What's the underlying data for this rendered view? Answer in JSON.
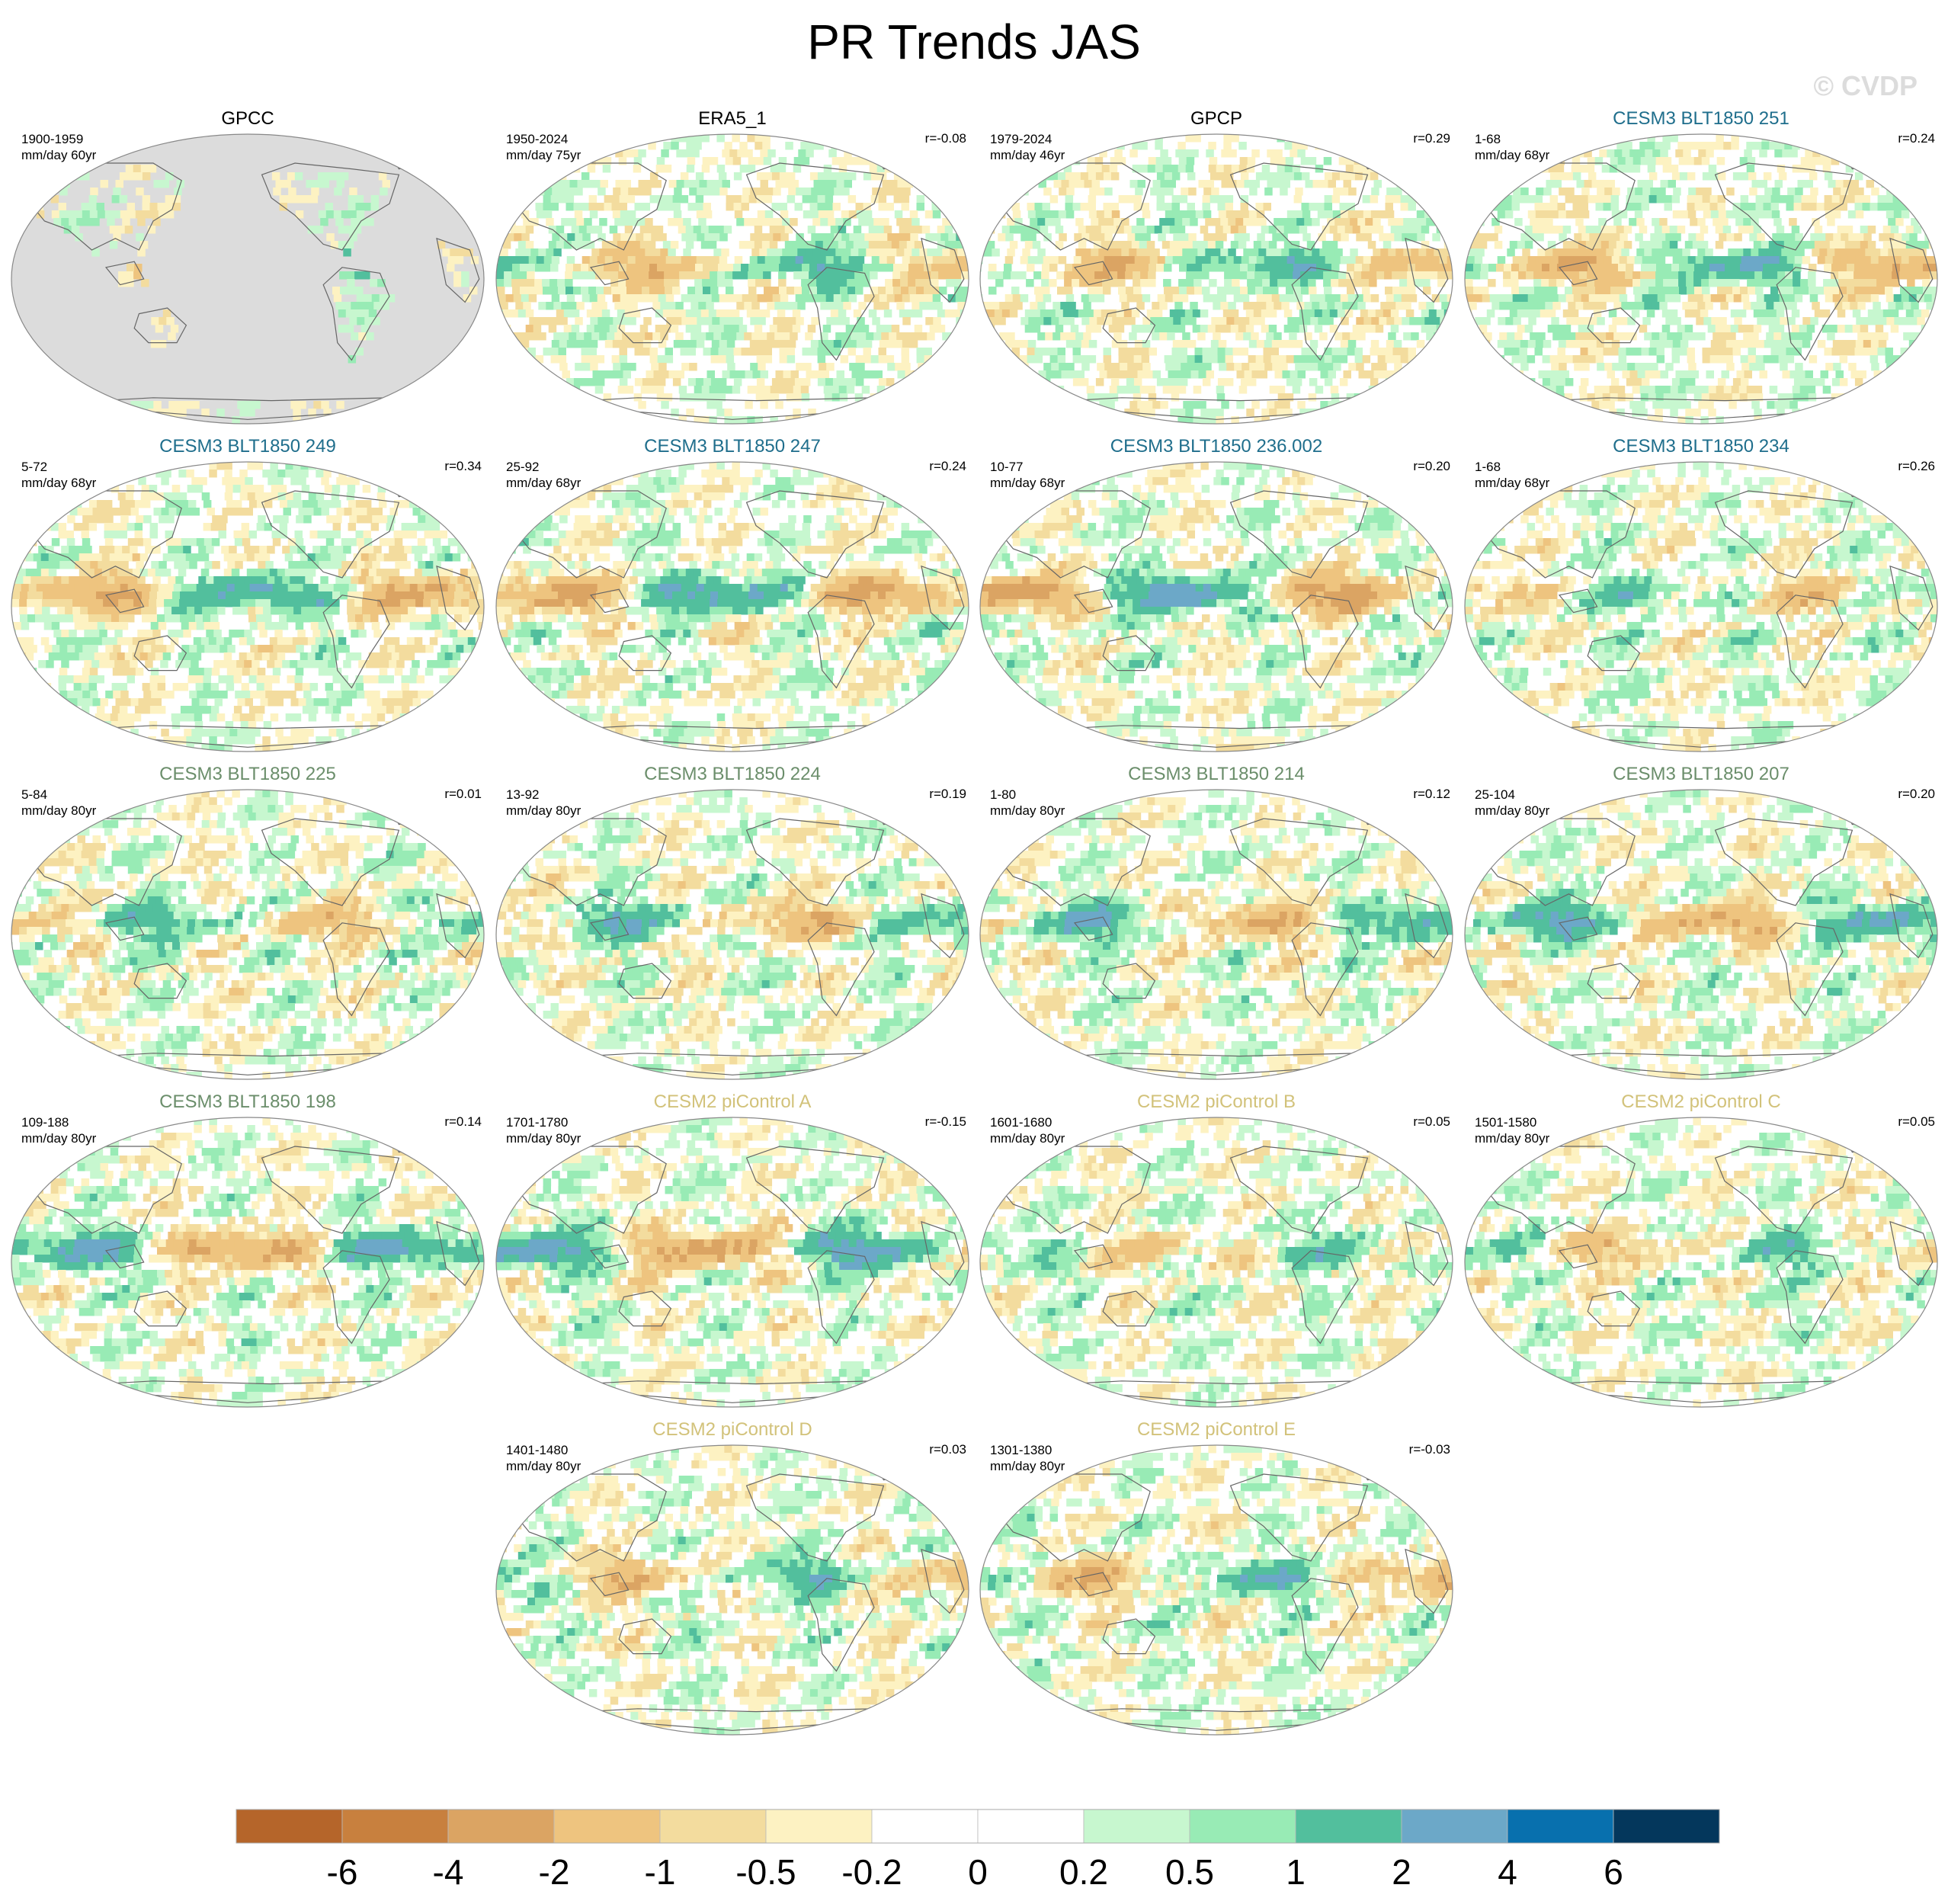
{
  "title": "PR Trends JAS",
  "watermark": "© CVDP",
  "chart_data": {
    "type": "heatmap",
    "projection": "robinson",
    "units_label": "mm/day",
    "colorbar": {
      "labels": [
        "-6",
        "-4",
        "-2",
        "-1",
        "-0.5",
        "-0.2",
        "0",
        "0.2",
        "0.5",
        "1",
        "2",
        "4",
        "6"
      ],
      "colors": [
        "#b5652a",
        "#c8803e",
        "#dba463",
        "#eec47f",
        "#f3dc9e",
        "#fdf2c2",
        "#ffffff",
        "#ffffff",
        "#c7f7cf",
        "#98ebb5",
        "#52bf9d",
        "#6ca8c8",
        "#0870ae",
        "#04375c"
      ]
    },
    "panels": [
      {
        "title": "GPCC",
        "title_color": "#000000",
        "period": "1900-1959",
        "trend_unit": "mm/day 60yr",
        "corr": "",
        "land_only": true
      },
      {
        "title": "ERA5_1",
        "title_color": "#000000",
        "period": "1950-2024",
        "trend_unit": "mm/day 75yr",
        "corr": "r=-0.08",
        "land_only": false
      },
      {
        "title": "GPCP",
        "title_color": "#000000",
        "period": "1979-2024",
        "trend_unit": "mm/day 46yr",
        "corr": "r=0.29",
        "land_only": false
      },
      {
        "title": "CESM3 BLT1850 251",
        "title_color": "#1f6e8c",
        "period": "1-68",
        "trend_unit": "mm/day 68yr",
        "corr": "r=0.24",
        "land_only": false
      },
      {
        "title": "CESM3 BLT1850 249",
        "title_color": "#1f6e8c",
        "period": "5-72",
        "trend_unit": "mm/day 68yr",
        "corr": "r=0.34",
        "land_only": false
      },
      {
        "title": "CESM3 BLT1850 247",
        "title_color": "#1f6e8c",
        "period": "25-92",
        "trend_unit": "mm/day 68yr",
        "corr": "r=0.24",
        "land_only": false
      },
      {
        "title": "CESM3 BLT1850 236.002",
        "title_color": "#1f6e8c",
        "period": "10-77",
        "trend_unit": "mm/day 68yr",
        "corr": "r=0.20",
        "land_only": false
      },
      {
        "title": "CESM3 BLT1850 234",
        "title_color": "#1f6e8c",
        "period": "1-68",
        "trend_unit": "mm/day 68yr",
        "corr": "r=0.26",
        "land_only": false
      },
      {
        "title": "CESM3 BLT1850 225",
        "title_color": "#6b8e6b",
        "period": "5-84",
        "trend_unit": "mm/day 80yr",
        "corr": "r=0.01",
        "land_only": false
      },
      {
        "title": "CESM3 BLT1850 224",
        "title_color": "#6b8e6b",
        "period": "13-92",
        "trend_unit": "mm/day 80yr",
        "corr": "r=0.19",
        "land_only": false
      },
      {
        "title": "CESM3 BLT1850 214",
        "title_color": "#6b8e6b",
        "period": "1-80",
        "trend_unit": "mm/day 80yr",
        "corr": "r=0.12",
        "land_only": false
      },
      {
        "title": "CESM3 BLT1850 207",
        "title_color": "#6b8e6b",
        "period": "25-104",
        "trend_unit": "mm/day 80yr",
        "corr": "r=0.20",
        "land_only": false
      },
      {
        "title": "CESM3 BLT1850 198",
        "title_color": "#6b8e6b",
        "period": "109-188",
        "trend_unit": "mm/day 80yr",
        "corr": "r=0.14",
        "land_only": false
      },
      {
        "title": "CESM2 piControl A",
        "title_color": "#d2c27a",
        "period": "1701-1780",
        "trend_unit": "mm/day 80yr",
        "corr": "r=-0.15",
        "land_only": false
      },
      {
        "title": "CESM2 piControl B",
        "title_color": "#d2c27a",
        "period": "1601-1680",
        "trend_unit": "mm/day 80yr",
        "corr": "r=0.05",
        "land_only": false
      },
      {
        "title": "CESM2 piControl C",
        "title_color": "#d2c27a",
        "period": "1501-1580",
        "trend_unit": "mm/day 80yr",
        "corr": "r=0.05",
        "land_only": false
      },
      {
        "title": "CESM2 piControl D",
        "title_color": "#d2c27a",
        "period": "1401-1480",
        "trend_unit": "mm/day 80yr",
        "corr": "r=0.03",
        "land_only": false
      },
      {
        "title": "CESM2 piControl E",
        "title_color": "#d2c27a",
        "period": "1301-1380",
        "trend_unit": "mm/day 80yr",
        "corr": "r=-0.03",
        "land_only": false
      }
    ]
  }
}
